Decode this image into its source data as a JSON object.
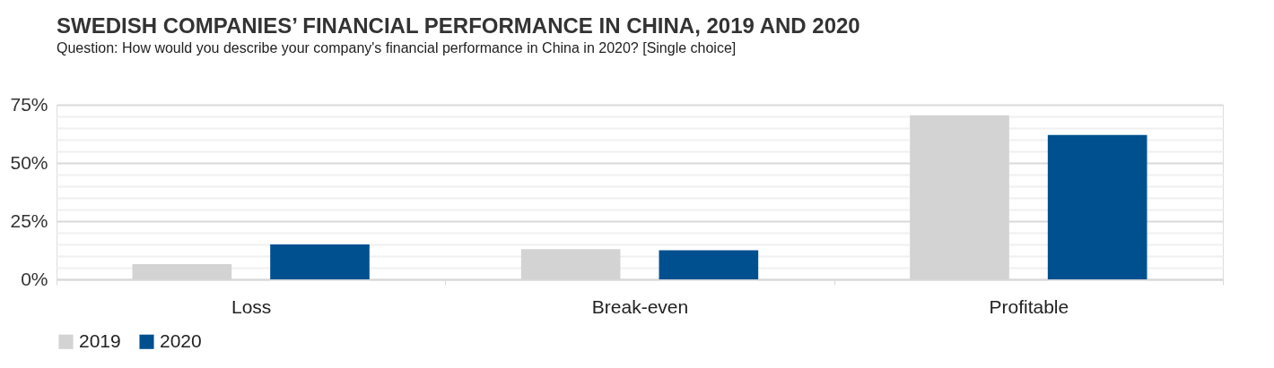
{
  "chart_data": {
    "type": "bar",
    "title": "SWEDISH COMPANIES’ FINANCIAL PERFORMANCE IN CHINA, 2019 AND 2020",
    "subtitle": "Question: How would you describe your company's financial performance in China in 2020? [Single choice]",
    "categories": [
      "Loss",
      "Break-even",
      "Profitable"
    ],
    "series": [
      {
        "name": "2019",
        "color": "#d3d3d3",
        "values": [
          6.5,
          13,
          70.5
        ]
      },
      {
        "name": "2020",
        "color": "#00508f",
        "values": [
          15,
          12.5,
          62
        ]
      }
    ],
    "ylim": [
      0,
      75
    ],
    "yticks": [
      {
        "value": 0,
        "label": "0%"
      },
      {
        "value": 5,
        "label": null
      },
      {
        "value": 10,
        "label": null
      },
      {
        "value": 15,
        "label": null
      },
      {
        "value": 20,
        "label": null
      },
      {
        "value": 25,
        "label": "25%"
      },
      {
        "value": 30,
        "label": null
      },
      {
        "value": 35,
        "label": null
      },
      {
        "value": 40,
        "label": null
      },
      {
        "value": 45,
        "label": null
      },
      {
        "value": 50,
        "label": "50%"
      },
      {
        "value": 55,
        "label": null
      },
      {
        "value": 60,
        "label": null
      },
      {
        "value": 65,
        "label": null
      },
      {
        "value": 70,
        "label": null
      },
      {
        "value": 75,
        "label": "75%"
      }
    ],
    "grid": "y",
    "legend": "bottom"
  }
}
